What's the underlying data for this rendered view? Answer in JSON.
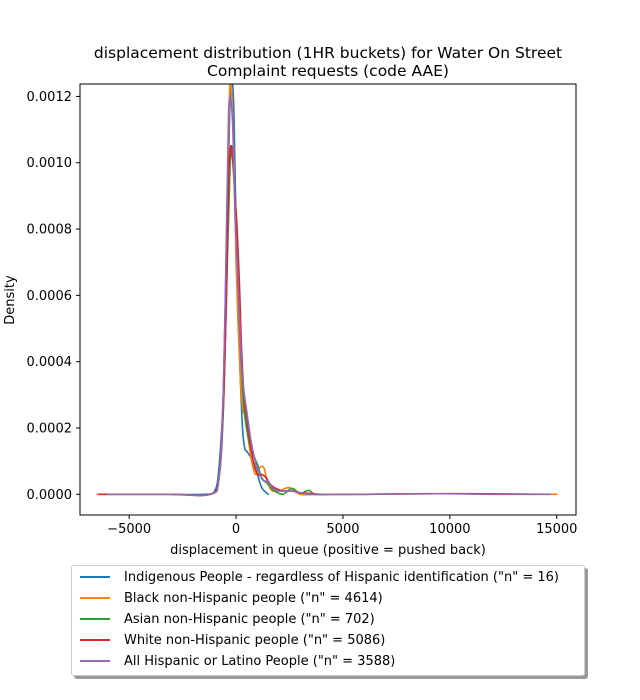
{
  "chart_data": {
    "type": "line",
    "title_line1": "displacement distribution (1HR buckets) for Water On Street",
    "title_line2": "Complaint requests (code AAE)",
    "xlabel": "displacement in queue (positive = pushed back)",
    "ylabel": "Density",
    "xlim": [
      -7300,
      15900
    ],
    "ylim": [
      -6.25e-05,
      0.0012375
    ],
    "xticks": [
      -5000,
      0,
      5000,
      10000,
      15000
    ],
    "xtick_labels": [
      "−5000",
      "0",
      "5000",
      "10000",
      "15000"
    ],
    "yticks": [
      0.0,
      0.0002,
      0.0004,
      0.0006,
      0.0008,
      0.001,
      0.0012
    ],
    "ytick_labels": [
      "0.0000",
      "0.0002",
      "0.0004",
      "0.0006",
      "0.0008",
      "0.0010",
      "0.0012"
    ],
    "grid": false,
    "legend_placement": "below plot",
    "series": [
      {
        "name": "Indigenous People - regardless of Hispanic identification (\"n\" = 16)",
        "color": "#1f77b4",
        "x": [
          -3100,
          -1500,
          -1000,
          -800,
          -600,
          -450,
          -300,
          -200,
          -100,
          0,
          100,
          200,
          300,
          400,
          500,
          600,
          800,
          1000,
          1200,
          1500
        ],
        "y": [
          0.0,
          0.0,
          1e-05,
          8e-05,
          0.0003,
          0.0007,
          0.00115,
          0.00125,
          0.00115,
          0.0008,
          0.00055,
          0.00035,
          0.0002,
          0.00014,
          0.00013,
          0.00012,
          0.0001,
          6e-05,
          2e-05,
          0.0
        ]
      },
      {
        "name": "Black non-Hispanic people (\"n\" = 4614)",
        "color": "#ff7f0e",
        "x": [
          -6500,
          -3000,
          -1200,
          -800,
          -600,
          -400,
          -300,
          -200,
          -100,
          0,
          100,
          200,
          300,
          400,
          500,
          700,
          900,
          1100,
          1300,
          1500,
          1700,
          2000,
          2500,
          3000,
          4000,
          6000,
          10000,
          15000
        ],
        "y": [
          0.0,
          0.0,
          0.0,
          5e-05,
          0.0003,
          0.0009,
          0.00122,
          0.0012,
          0.001,
          0.0007,
          0.0005,
          0.00035,
          0.00026,
          0.00024,
          0.0002,
          0.00011,
          6e-05,
          8e-05,
          8e-05,
          3e-05,
          1e-05,
          1e-05,
          2e-05,
          0.0,
          0.0,
          0.0,
          2e-06,
          0.0
        ]
      },
      {
        "name": "Asian non-Hispanic people (\"n\" = 702)",
        "color": "#2ca02c",
        "x": [
          -3000,
          -1200,
          -800,
          -600,
          -450,
          -300,
          -200,
          -100,
          0,
          100,
          200,
          300,
          400,
          600,
          800,
          1000,
          1200,
          1500,
          1800,
          2200,
          2600,
          3000,
          3400,
          3700,
          4500,
          5500
        ],
        "y": [
          0.0,
          0.0,
          5e-05,
          0.00025,
          0.0006,
          0.00095,
          0.00105,
          0.00095,
          0.0008,
          0.00062,
          0.00045,
          0.00032,
          0.00024,
          0.00016,
          0.00012,
          9e-05,
          5e-05,
          3e-05,
          1e-05,
          0.0,
          1.8e-05,
          3e-06,
          1.2e-05,
          0.0,
          0.0,
          0.0
        ]
      },
      {
        "name": "White non-Hispanic people (\"n\" = 5086)",
        "color": "#d62728",
        "x": [
          -6400,
          -3000,
          -1200,
          -800,
          -600,
          -450,
          -350,
          -250,
          -150,
          -50,
          50,
          150,
          250,
          350,
          450,
          600,
          800,
          1000,
          1200,
          1400,
          1600,
          1800,
          2200,
          2600,
          3000,
          3400,
          4000,
          6000,
          10000,
          14000
        ],
        "y": [
          0.0,
          0.0,
          0.0,
          5e-05,
          0.00025,
          0.0006,
          0.00095,
          0.00105,
          0.001,
          0.0009,
          0.0008,
          0.00065,
          0.00045,
          0.00032,
          0.00025,
          0.00018,
          0.0001,
          6e-05,
          6e-05,
          5e-05,
          3e-05,
          2e-05,
          1e-05,
          1e-05,
          5e-06,
          3e-06,
          0.0,
          0.0,
          2e-06,
          0.0
        ]
      },
      {
        "name": "All Hispanic or Latino People (\"n\" = 3588)",
        "color": "#9467bd",
        "x": [
          -6000,
          -3000,
          -1200,
          -800,
          -600,
          -450,
          -350,
          -250,
          -150,
          -50,
          50,
          150,
          250,
          350,
          500,
          700,
          900,
          1100,
          1300,
          1500,
          1700,
          2000,
          2500,
          3000,
          3500,
          4500,
          6000,
          9000,
          12000,
          14700
        ],
        "y": [
          0.0,
          0.0,
          0.0,
          5e-05,
          0.0003,
          0.0008,
          0.00115,
          0.00119,
          0.0011,
          0.00085,
          0.0007,
          0.00055,
          0.0004,
          0.00032,
          0.00025,
          0.00016,
          0.0001,
          6e-05,
          4e-05,
          4e-05,
          2e-05,
          1e-05,
          1e-05,
          5e-06,
          0.0,
          0.0,
          0.0,
          2e-06,
          0.0,
          0.0
        ]
      }
    ]
  }
}
